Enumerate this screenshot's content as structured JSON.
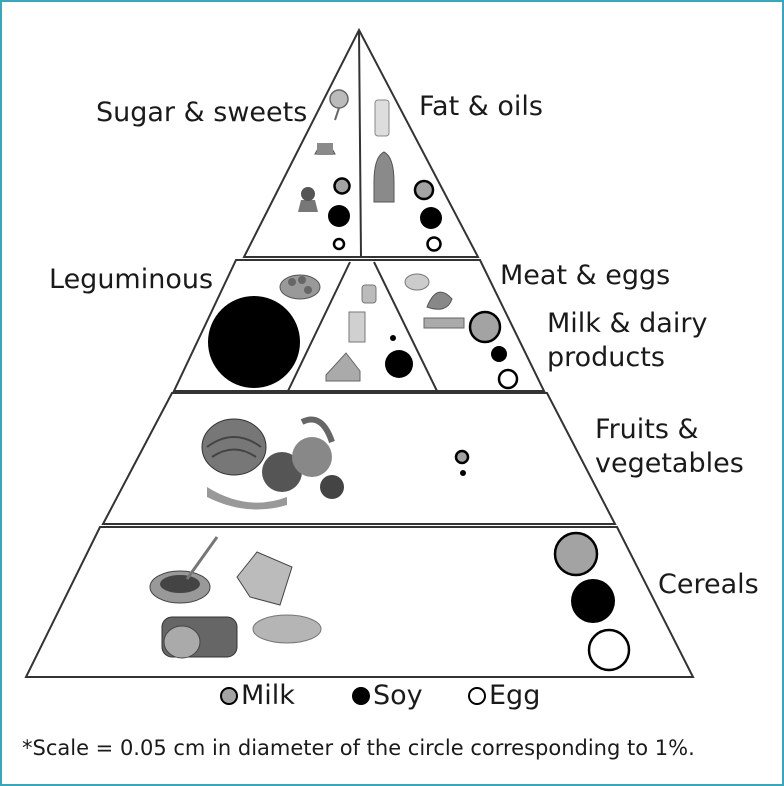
{
  "labels": {
    "sugar": "Sugar & sweets",
    "fat": "Fat & oils",
    "leguminous": "Leguminous",
    "meat": "Meat & eggs",
    "milk_line1": "Milk & dairy",
    "milk_line2": "products",
    "fruits_line1": "Fruits &",
    "fruits_line2": "vegetables",
    "cereals": "Cereals"
  },
  "legend": {
    "milk": "Milk",
    "soy": "Soy",
    "egg": "Egg"
  },
  "colors": {
    "milk": "#a3a3a3",
    "soy": "#000000",
    "egg": "#ffffff",
    "frame_border": "#3aa6b9"
  },
  "footnote": "*Scale = 0.05 cm in diameter of the circle corresponding to 1%."
}
